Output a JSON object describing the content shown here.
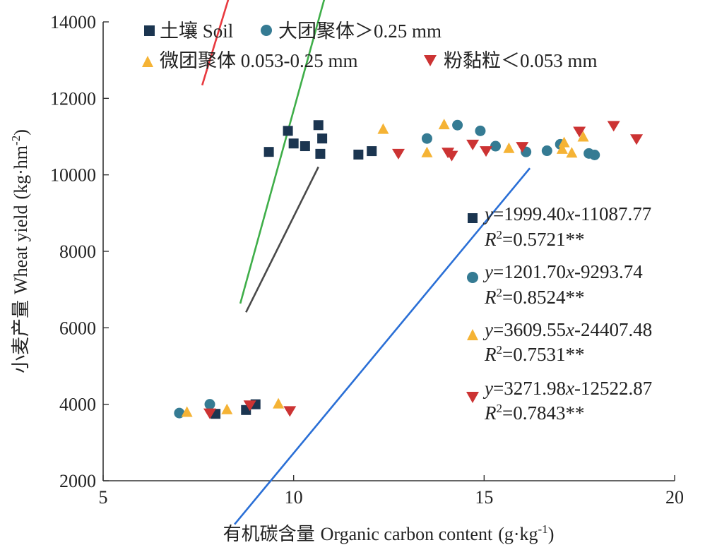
{
  "chart_data": {
    "type": "scatter",
    "xlabel_cn": "有机碳含量",
    "xlabel_en": "Organic carbon content",
    "xunit": "(g·kg",
    "xunit_sup": "-1",
    "xunit_end": ")",
    "ylabel_cn": "小麦产量",
    "ylabel_en": "Wheat yield",
    "yunit": "(kg·hm",
    "yunit_sup": "-2",
    "yunit_end": ")",
    "xlim": [
      5,
      20
    ],
    "ylim": [
      2000,
      14000
    ],
    "xticks": [
      5,
      10,
      15,
      20
    ],
    "yticks": [
      2000,
      4000,
      6000,
      8000,
      10000,
      12000,
      14000
    ],
    "grid": false,
    "legend_position": "top",
    "series": [
      {
        "name": "土壤 Soil",
        "marker": "square",
        "color": "#1b3550",
        "line_color": "#4a4a4a",
        "fit_range": [
          8.75,
          10.65
        ],
        "points": [
          [
            7.95,
            3750
          ],
          [
            8.75,
            3850
          ],
          [
            9.0,
            4000
          ],
          [
            9.35,
            10600
          ],
          [
            9.85,
            11150
          ],
          [
            10.0,
            10820
          ],
          [
            10.3,
            10750
          ],
          [
            10.65,
            11300
          ],
          [
            10.7,
            10550
          ],
          [
            10.75,
            10950
          ],
          [
            11.7,
            10530
          ],
          [
            12.05,
            10620
          ]
        ],
        "equation_y": "y",
        "equation_body": "=1999.40",
        "equation_x": "x",
        "equation_tail": "-11087.77",
        "r2_label": "R",
        "r2_sup": "2",
        "r2_value": "=0.5721**"
      },
      {
        "name": "大团聚体＞0.25 mm",
        "marker": "circle",
        "color": "#357b93",
        "line_color": "#2a6fd6",
        "fit_range": [
          8.45,
          16.2
        ],
        "points": [
          [
            7.0,
            3770
          ],
          [
            7.8,
            4000
          ],
          [
            13.5,
            10950
          ],
          [
            14.3,
            11300
          ],
          [
            14.9,
            11150
          ],
          [
            15.3,
            10750
          ],
          [
            16.1,
            10600
          ],
          [
            16.65,
            10630
          ],
          [
            17.0,
            10800
          ],
          [
            17.75,
            10560
          ],
          [
            17.9,
            10520
          ]
        ],
        "equation_y": "y",
        "equation_body": "=1201.70",
        "equation_x": "x",
        "equation_tail": "-9293.74",
        "r2_label": "R",
        "r2_sup": "2",
        "r2_value": "=0.8524**"
      },
      {
        "name": "微团聚体 0.053-0.25 mm",
        "marker": "triangle-up",
        "color": "#f5b335",
        "line_color": "#3fae49",
        "fit_range": [
          8.6,
          16.3
        ],
        "points": [
          [
            7.2,
            3800
          ],
          [
            8.25,
            3870
          ],
          [
            9.6,
            4020
          ],
          [
            12.35,
            11200
          ],
          [
            13.5,
            10590
          ],
          [
            13.95,
            11320
          ],
          [
            15.65,
            10700
          ],
          [
            17.05,
            10680
          ],
          [
            17.1,
            10850
          ],
          [
            17.3,
            10580
          ],
          [
            17.6,
            11000
          ]
        ],
        "equation_y": "y",
        "equation_body": "=3609.55",
        "equation_x": "x",
        "equation_tail": "-24407.48",
        "r2_label": "R",
        "r2_sup": "2",
        "r2_value": "=0.7531**"
      },
      {
        "name": "粉黏粒＜0.053 mm",
        "marker": "triangle-down",
        "color": "#cc3333",
        "line_color": "#e8393f",
        "fit_range": [
          7.6,
          16.45
        ],
        "points": [
          [
            7.8,
            3760
          ],
          [
            8.85,
            3970
          ],
          [
            9.9,
            3820
          ],
          [
            12.75,
            10550
          ],
          [
            14.05,
            10580
          ],
          [
            14.15,
            10500
          ],
          [
            14.7,
            10790
          ],
          [
            15.05,
            10620
          ],
          [
            16.0,
            10730
          ],
          [
            17.5,
            11130
          ],
          [
            18.4,
            11280
          ],
          [
            19.0,
            10930
          ]
        ],
        "equation_y": "y",
        "equation_body": "=3271.98",
        "equation_x": "x",
        "equation_tail": "-12522.87",
        "r2_label": "R",
        "r2_sup": "2",
        "r2_value": "=0.7843**"
      }
    ]
  }
}
